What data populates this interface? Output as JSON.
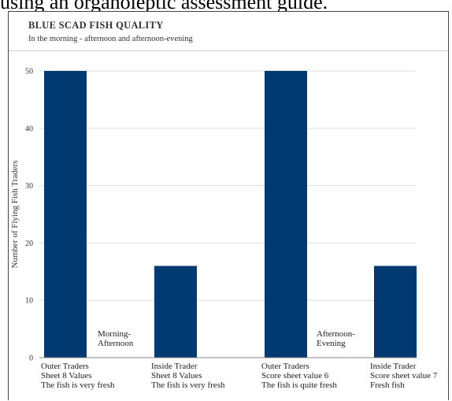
{
  "page": {
    "top_caption": "using an organoleptic assessment guide."
  },
  "chart_data": {
    "type": "bar",
    "title": "BLUE SCAD FISH QUALITY",
    "subtitle": "In the morning - afternoon and afternoon-evening",
    "ylabel": "Number of Flying Fish Traders",
    "xlabel": "",
    "ylim": [
      0,
      50
    ],
    "yticks": [
      0,
      10,
      20,
      30,
      40,
      50
    ],
    "grid": true,
    "colors": {
      "bar": "#003a70",
      "grid": "#dddddd"
    },
    "categories": [
      {
        "lines": [
          "Outer Traders",
          "Sheet 8 Values",
          "The fish is very fresh"
        ]
      },
      {
        "lines": [
          "Inside Trader",
          "Sheet 8 Values",
          "The fish is very fresh"
        ]
      },
      {
        "lines": [
          "Outer Traders",
          "Score sheet value 6",
          "The fish is quite fresh"
        ]
      },
      {
        "lines": [
          "Inside Trader",
          "Score sheet value 7",
          "Fresh fish"
        ]
      }
    ],
    "values": [
      50,
      16,
      50,
      16
    ],
    "annotations": [
      {
        "lines": [
          "Morning-",
          "Afternoon"
        ]
      },
      {
        "lines": [
          "Afternoon-",
          "Evening"
        ]
      }
    ]
  }
}
